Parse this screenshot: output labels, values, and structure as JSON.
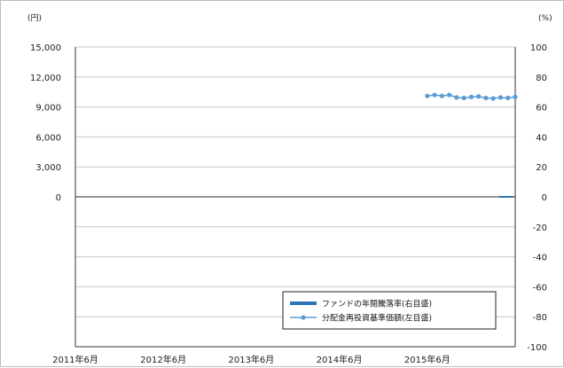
{
  "chart_data": {
    "type": "line",
    "left_axis": {
      "unit": "(円)",
      "range": [
        -15000,
        15000
      ],
      "tick_labels": [
        "15,000",
        "12,000",
        "9,000",
        "6,000",
        "3,000",
        "0"
      ],
      "tick_values": [
        15000,
        12000,
        9000,
        6000,
        3000,
        0
      ]
    },
    "right_axis": {
      "unit": "(%)",
      "range": [
        -100,
        100
      ],
      "tick_labels": [
        "100",
        "80",
        "60",
        "40",
        "20",
        "0",
        "-20",
        "-40",
        "-60",
        "-80",
        "-100"
      ],
      "tick_values": [
        100,
        80,
        60,
        40,
        20,
        0,
        -20,
        -40,
        -60,
        -80,
        -100
      ]
    },
    "x_axis": {
      "range": [
        "2011-06",
        "2016-06"
      ],
      "tick_labels": [
        "2011年6月",
        "2012年6月",
        "2013年6月",
        "2014年6月",
        "2015年6月"
      ],
      "tick_values": [
        "2011-06",
        "2012-06",
        "2013-06",
        "2014-06",
        "2015-06"
      ]
    },
    "grid": true,
    "legend_position": "bottom-right",
    "series": [
      {
        "name": "ファンドの年間騰落率(右目盛)",
        "axis": "right",
        "color": "#2e75b6",
        "x": [
          "2016-05"
        ],
        "y": [
          0
        ]
      },
      {
        "name": "分配金再投資基準価額(左目盛)",
        "axis": "left",
        "color": "#5b9bd5",
        "marker": "dot",
        "x": [
          "2015-06",
          "2015-07",
          "2015-08",
          "2015-09",
          "2015-10",
          "2015-11",
          "2015-12",
          "2016-01",
          "2016-02",
          "2016-03",
          "2016-04",
          "2016-05",
          "2016-06"
        ],
        "y": [
          10100,
          10200,
          10100,
          10200,
          9950,
          9900,
          10000,
          10050,
          9900,
          9850,
          9950,
          9900,
          10000
        ]
      }
    ]
  }
}
